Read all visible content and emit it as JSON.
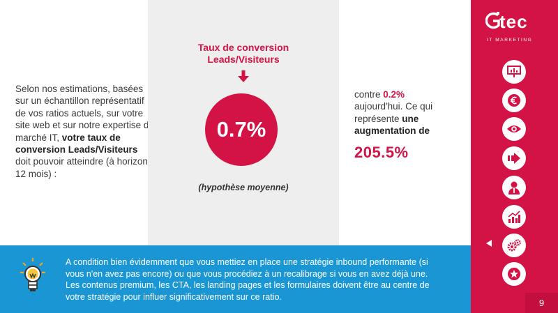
{
  "left": {
    "intro": "Selon nos estimations, basées sur un échantillon représentatif de vos ratios actuels, sur votre site web et sur notre expertise du marché IT, ",
    "emphasis": "votre taux de conversion Leads/Visiteurs",
    "outro": " doit pouvoir atteindre (à horizon 12 mois) :"
  },
  "center": {
    "title_line1": "Taux de conversion",
    "title_line2": "Leads/Visiteurs",
    "value": "0.7%",
    "note": "(hypothèse moyenne)"
  },
  "right": {
    "prefix": "contre ",
    "current": "0.2%",
    "middle": " aujourd'hui. Ce qui représente ",
    "emphasis": "une augmentation de",
    "increase": "205.5%"
  },
  "brand": {
    "name": "tec",
    "tagline": "IT MARKETING",
    "colors": {
      "primary": "#d31245",
      "secondary": "#1a96d4",
      "panel": "#eeeeee"
    }
  },
  "sidebar": {
    "icons": [
      "presentation-icon",
      "euro-icon",
      "eye-icon",
      "arrow-right-icon",
      "person-icon",
      "growth-chart-icon",
      "gears-icon",
      "star-icon"
    ],
    "active_index": 6
  },
  "bottom": {
    "text": "A condition bien évidemment que vous mettiez en place une stratégie inbound performante (si vous n'en avez pas encore) ou que vous procédiez à un recalibrage si vous en avez déjà une. Les contenus premium, les CTA, les landing pages et les formulaires doivent être au centre de votre stratégie pour influer significativement sur ce ratio."
  },
  "page_number": "9"
}
